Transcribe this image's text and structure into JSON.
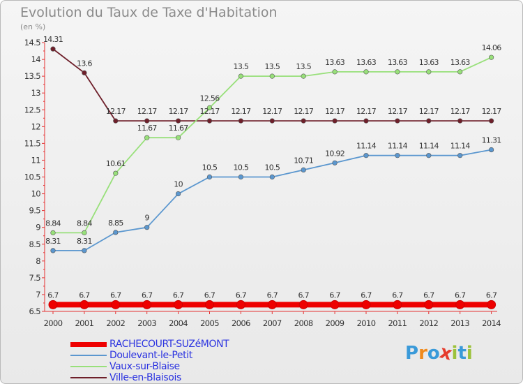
{
  "header": {
    "title": "Evolution du Taux de Taxe d'Habitation",
    "unit": "(en %)"
  },
  "chart_data": {
    "type": "line",
    "title": "Evolution du Taux de Taxe d'Habitation",
    "ylabel": "(en %)",
    "xlabel": "",
    "ylim": [
      6.5,
      14.5
    ],
    "y_ticks": [
      "6.5",
      "7",
      "7.5",
      "8",
      "8.5",
      "9",
      "9.5",
      "10",
      "10.5",
      "11",
      "11.5",
      "12",
      "12.5",
      "13",
      "13.5",
      "14",
      "14.5"
    ],
    "x": [
      "2000",
      "2001",
      "2002",
      "2003",
      "2004",
      "2005",
      "2006",
      "2007",
      "2008",
      "2009",
      "2010",
      "2011",
      "2012",
      "2013",
      "2014"
    ],
    "grid": false,
    "legend_position": "bottom-left",
    "series": [
      {
        "name": "RACHECOURT-SUZéMONT",
        "color": "#ee0000",
        "values": [
          6.7,
          6.7,
          6.7,
          6.7,
          6.7,
          6.7,
          6.7,
          6.7,
          6.7,
          6.7,
          6.7,
          6.7,
          6.7,
          6.7,
          6.7
        ],
        "labels": [
          "6.7",
          "6.7",
          "6.7",
          "6.7",
          "6.7",
          "6.7",
          "6.7",
          "6.7",
          "6.7",
          "6.7",
          "6.7",
          "6.7",
          "6.7",
          "6.7",
          "6.7"
        ]
      },
      {
        "name": "Doulevant-le-Petit",
        "color": "#5b97cf",
        "values": [
          8.31,
          8.31,
          8.85,
          9,
          10,
          10.5,
          10.5,
          10.5,
          10.71,
          10.92,
          11.14,
          11.14,
          11.14,
          11.14,
          11.31
        ],
        "labels": [
          "8.31",
          "8.31",
          "8.85",
          "9",
          "10",
          "10.5",
          "10.5",
          "10.5",
          "10.71",
          "10.92",
          "11.14",
          "11.14",
          "11.14",
          "11.14",
          "11.31"
        ]
      },
      {
        "name": "Vaux-sur-Blaise",
        "color": "#98e07a",
        "values": [
          8.84,
          8.84,
          10.61,
          11.67,
          11.67,
          12.56,
          13.5,
          13.5,
          13.5,
          13.63,
          13.63,
          13.63,
          13.63,
          13.63,
          14.06
        ],
        "labels": [
          "8.84",
          "8.84",
          "10.61",
          "11.67",
          "11.67",
          "12.56",
          "13.5",
          "13.5",
          "13.5",
          "13.63",
          "13.63",
          "13.63",
          "13.63",
          "13.63",
          "14.06"
        ]
      },
      {
        "name": "Ville-en-Blaisois",
        "color": "#6e1f2a",
        "values": [
          14.31,
          13.6,
          12.17,
          12.17,
          12.17,
          12.17,
          12.17,
          12.17,
          12.17,
          12.17,
          12.17,
          12.17,
          12.17,
          12.17,
          12.17
        ],
        "labels": [
          "14.31",
          "13.6",
          "12.17",
          "12.17",
          "12.17",
          "12.17",
          "12.17",
          "12.17",
          "12.17",
          "12.17",
          "12.17",
          "12.17",
          "12.17",
          "12.17",
          "12.17"
        ]
      }
    ]
  },
  "legend": {
    "items": [
      {
        "label": "RACHECOURT-SUZéMONT"
      },
      {
        "label": "Doulevant-le-Petit"
      },
      {
        "label": "Vaux-sur-Blaise"
      },
      {
        "label": "Ville-en-Blaisois"
      }
    ]
  },
  "logo": {
    "text": "Proxiti",
    "letters": [
      "P",
      "r",
      "o",
      "x",
      "i",
      "t",
      "i"
    ],
    "colors": [
      "#3a9ad9",
      "#f08a1c",
      "#3a9ad9",
      "#e53b2c",
      "#9cc23b",
      "#3a9ad9",
      "#9cc23b"
    ]
  }
}
